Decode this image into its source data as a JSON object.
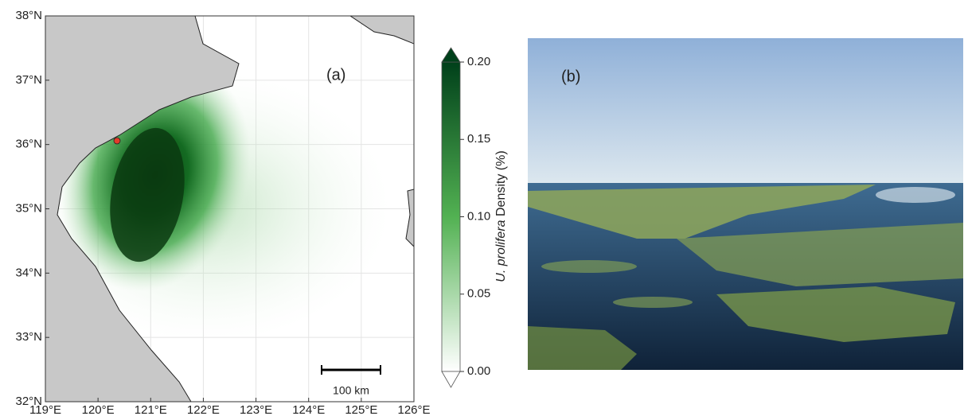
{
  "map": {
    "panel_label": "(a)",
    "xlim": [
      119,
      126
    ],
    "ylim": [
      32,
      38
    ],
    "xticks": [
      {
        "value": 119,
        "label": "119°E"
      },
      {
        "value": 120,
        "label": "120°E"
      },
      {
        "value": 121,
        "label": "121°E"
      },
      {
        "value": 122,
        "label": "122°E"
      },
      {
        "value": 123,
        "label": "123°E"
      },
      {
        "value": 124,
        "label": "124°E"
      },
      {
        "value": 125,
        "label": "125°E"
      },
      {
        "value": 126,
        "label": "126°E"
      }
    ],
    "yticks": [
      {
        "value": 32,
        "label": "32°N"
      },
      {
        "value": 33,
        "label": "33°N"
      },
      {
        "value": 34,
        "label": "34°N"
      },
      {
        "value": 35,
        "label": "35°N"
      },
      {
        "value": 36,
        "label": "36°N"
      },
      {
        "value": 37,
        "label": "37°N"
      },
      {
        "value": 38,
        "label": "38°N"
      }
    ],
    "scale_bar": "100 km",
    "colorbar": {
      "label_species": "U. prolifera",
      "label_rest": " Density (%)",
      "lim": [
        0,
        0.2
      ],
      "ticks": [
        {
          "value": 0,
          "label": "0.00"
        },
        {
          "value": 0.05,
          "label": "0.05"
        },
        {
          "value": 0.1,
          "label": "0.10"
        },
        {
          "value": 0.15,
          "label": "0.15"
        },
        {
          "value": 0.2,
          "label": "0.20"
        }
      ]
    }
  },
  "photo": {
    "panel_label": "(b)"
  }
}
